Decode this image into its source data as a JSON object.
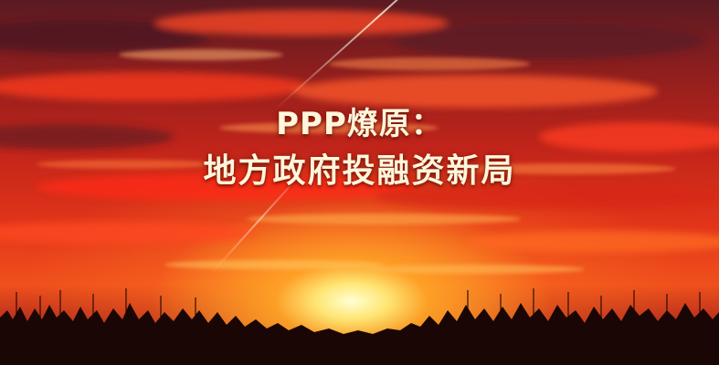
{
  "slide": {
    "title_line1": "PPP燎原：",
    "title_line2": "地方政府投融资新局"
  },
  "colors": {
    "sky_top": "#5a1a22",
    "sky_mid": "#e2351a",
    "sun_glow": "#ffec78",
    "title_text": "#fff6dc",
    "treeline": "#1a0604"
  }
}
